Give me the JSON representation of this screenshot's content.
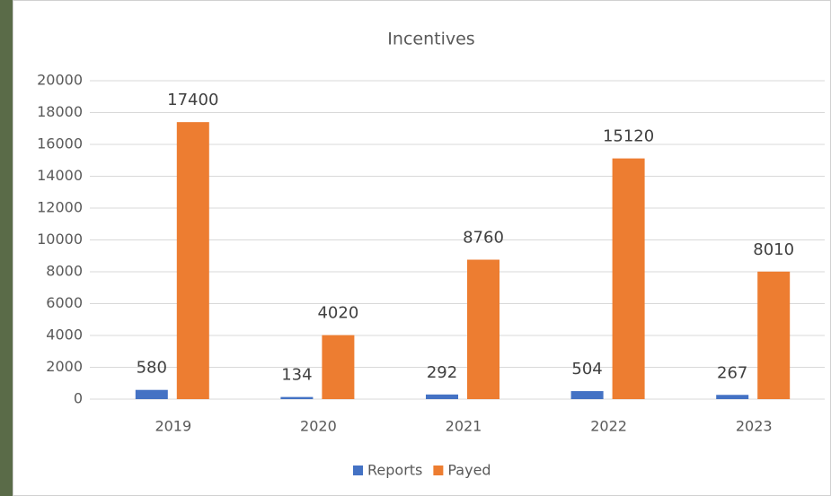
{
  "chart_data": {
    "type": "bar",
    "title": "Incentives",
    "categories": [
      "2019",
      "2020",
      "2021",
      "2022",
      "2023"
    ],
    "series": [
      {
        "name": "Reports",
        "color": "#4472c4",
        "values": [
          580,
          134,
          292,
          504,
          267
        ]
      },
      {
        "name": "Payed",
        "color": "#ed7d31",
        "values": [
          17400,
          4020,
          8760,
          15120,
          8010
        ]
      }
    ],
    "ylim": [
      0,
      20000
    ],
    "yticks": [
      0,
      2000,
      4000,
      6000,
      8000,
      10000,
      12000,
      14000,
      16000,
      18000,
      20000
    ],
    "grid": true,
    "legend": "bottom"
  }
}
